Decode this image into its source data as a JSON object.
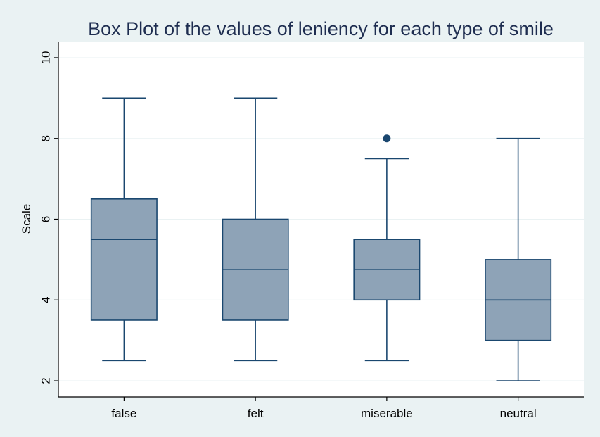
{
  "chart_data": {
    "type": "box",
    "title": "Box Plot of the values of leniency for each type of smile",
    "xlabel": "",
    "ylabel": "Scale",
    "ylim": [
      1.6,
      10.4
    ],
    "yticks": [
      2,
      4,
      6,
      8,
      10
    ],
    "grid": true,
    "colors": {
      "box_fill": "#8ea3b7",
      "line": "#1a476f",
      "outlier": "#1a476f",
      "plot_bg": "#ffffff",
      "page_bg": "#eaf2f3",
      "grid": "#eaf2f3"
    },
    "categories": [
      "false",
      "felt",
      "miserable",
      "neutral"
    ],
    "boxes": [
      {
        "category": "false",
        "whisker_low": 2.5,
        "q1": 3.5,
        "median": 5.5,
        "q3": 6.5,
        "whisker_high": 9.0,
        "outliers": []
      },
      {
        "category": "felt",
        "whisker_low": 2.5,
        "q1": 3.5,
        "median": 4.75,
        "q3": 6.0,
        "whisker_high": 9.0,
        "outliers": []
      },
      {
        "category": "miserable",
        "whisker_low": 2.5,
        "q1": 4.0,
        "median": 4.75,
        "q3": 5.5,
        "whisker_high": 7.5,
        "outliers": [
          8.0
        ]
      },
      {
        "category": "neutral",
        "whisker_low": 2.0,
        "q1": 3.0,
        "median": 4.0,
        "q3": 5.0,
        "whisker_high": 8.0,
        "outliers": []
      }
    ]
  }
}
